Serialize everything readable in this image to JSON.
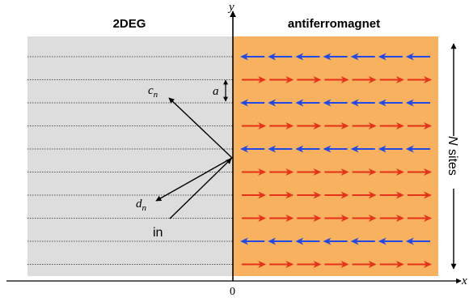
{
  "labels": {
    "region_left": "2DEG",
    "region_right": "antiferromagnet",
    "y_axis": "y",
    "x_axis": "x",
    "origin": "0",
    "reflected": "c",
    "reflected_sub": "n",
    "transmitted": "d",
    "transmitted_sub": "n",
    "incoming": "in",
    "spacing": "a",
    "sites_N": "N",
    "sites_word": " sites"
  },
  "lattice": {
    "rows": 10,
    "arrows_per_row": 7,
    "spin_pattern": [
      "left",
      "right",
      "left",
      "right",
      "left",
      "right",
      "right",
      "right",
      "left",
      "right"
    ]
  },
  "colors": {
    "left_region_fill": "#dddddd",
    "right_region_fill": "#f8b15f",
    "spin_left": "#1f49e8",
    "spin_right": "#e6321a",
    "axis": "#000000",
    "grid_line": "#555555"
  }
}
